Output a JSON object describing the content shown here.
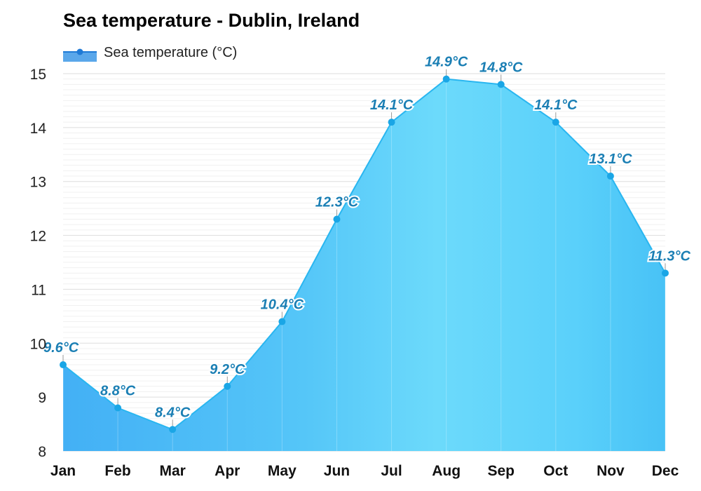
{
  "chart_data": {
    "type": "area",
    "title": "Sea temperature - Dublin, Ireland",
    "categories": [
      "Jan",
      "Feb",
      "Mar",
      "Apr",
      "May",
      "Jun",
      "Jul",
      "Aug",
      "Sep",
      "Oct",
      "Nov",
      "Dec"
    ],
    "series": [
      {
        "name": "Sea temperature (°C)",
        "values": [
          9.6,
          8.8,
          8.4,
          9.2,
          10.4,
          12.3,
          14.1,
          14.9,
          14.8,
          14.1,
          13.1,
          11.3
        ],
        "labels": [
          "9.6°C",
          "8.8°C",
          "8.4°C",
          "9.2°C",
          "10.4°C",
          "12.3°C",
          "14.1°C",
          "14.9°C",
          "14.8°C",
          "14.1°C",
          "13.1°C",
          "11.3°C"
        ]
      }
    ],
    "yticks": [
      8,
      9,
      10,
      11,
      12,
      13,
      14,
      15
    ],
    "ylim": [
      8,
      15
    ],
    "grid": true,
    "legend_position": "top-left",
    "colors": {
      "line": "#29b6f0",
      "point": "#1aa6e6",
      "label": "#1b7fb4",
      "fill_cold": "#4bb8f6",
      "fill_warm": "#6ad7fa",
      "grid": "#e6e6e6"
    }
  }
}
